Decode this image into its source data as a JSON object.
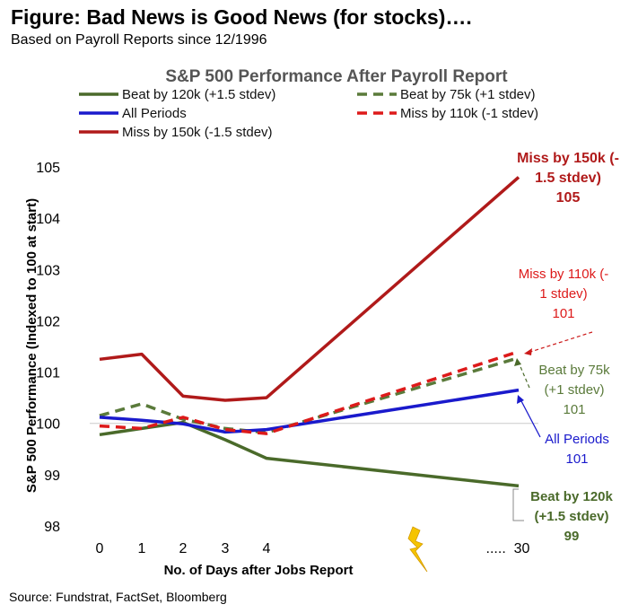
{
  "figure": {
    "title": "Figure: Bad News is Good News (for stocks)….",
    "subtitle": "Based on Payroll Reports since 12/1996",
    "source": "Source: Fundstrat, FactSet, Bloomberg"
  },
  "chart_data": {
    "type": "line",
    "title": "S&P 500 Performance After Payroll Report",
    "xlabel": "No. of Days after Jobs Report",
    "ylabel": "S&P 500 Performance (Indexed to 100 at start)",
    "x_ticks": [
      "0",
      "1",
      "2",
      "3",
      "4",
      ".....  30"
    ],
    "x": [
      "0",
      "1",
      "2",
      "3",
      "4",
      "30"
    ],
    "ylim": [
      98,
      105
    ],
    "y_ticks": [
      "98",
      "99",
      "100",
      "101",
      "102",
      "103",
      "104",
      "105"
    ],
    "grid": false,
    "reference_line": 100,
    "legend_position": "top",
    "series": [
      {
        "name": "Beat by 120k (+1.5 stdev)",
        "color": "#4a6a2a",
        "dash": false,
        "values": [
          99.78,
          99.9,
          100.02,
          99.68,
          99.32,
          98.78
        ],
        "end_label": [
          "Beat by 120k",
          "(+1.5 stdev)",
          "99"
        ]
      },
      {
        "name": "Beat by 75k (+1 stdev)",
        "color": "#5a7a3a",
        "dash": true,
        "values": [
          100.15,
          100.38,
          100.08,
          99.9,
          99.82,
          101.28
        ],
        "end_label": [
          "Beat by 75k",
          "(+1 stdev)",
          "101"
        ]
      },
      {
        "name": "All Periods",
        "color": "#1a1acc",
        "dash": false,
        "values": [
          100.12,
          100.06,
          99.99,
          99.83,
          99.88,
          100.65
        ],
        "end_label": [
          "All Periods",
          "101"
        ]
      },
      {
        "name": "Miss by 110k (-1 stdev)",
        "color": "#dd1a1a",
        "dash": true,
        "values": [
          99.95,
          99.9,
          100.12,
          99.88,
          99.8,
          101.4
        ],
        "end_label": [
          "Miss by 110k (-",
          "1 stdev)",
          "101"
        ]
      },
      {
        "name": "Miss by 150k (-1.5 stdev)",
        "color": "#b01a1a",
        "dash": false,
        "values": [
          101.25,
          101.35,
          100.53,
          100.45,
          100.5,
          104.8
        ],
        "end_label": [
          "Miss by 150k (-",
          "1.5 stdev)",
          "105"
        ]
      }
    ]
  }
}
